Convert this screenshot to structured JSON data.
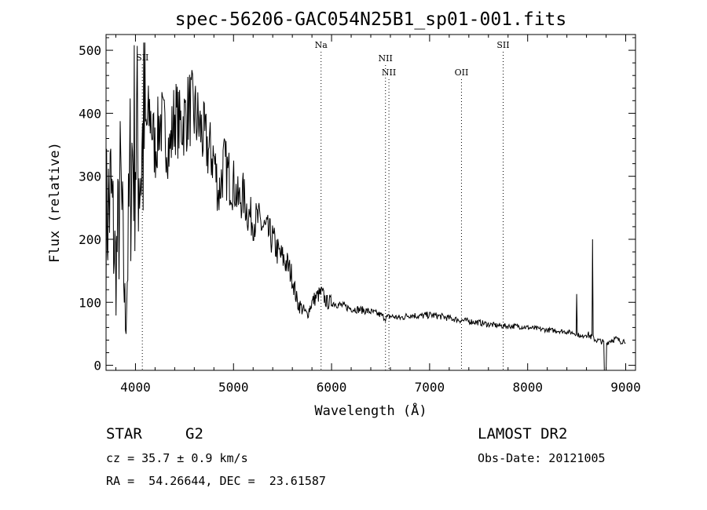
{
  "chart_data": {
    "type": "line",
    "title": "spec-56206-GAC054N25B1_sp01-001.fits",
    "xlabel": "Wavelength (Å)",
    "ylabel": "Flux (relative)",
    "xlim": [
      3700,
      9100
    ],
    "ylim": [
      -8,
      525
    ],
    "x_ticks": [
      4000,
      5000,
      6000,
      7000,
      8000,
      9000
    ],
    "y_ticks": [
      0,
      100,
      200,
      300,
      400,
      500
    ],
    "grid": false,
    "series": [
      {
        "x": [
          3700,
          3750,
          3800,
          3850,
          3900,
          3950,
          4000,
          4050,
          4100,
          4150,
          4200,
          4250,
          4300,
          4350,
          4400,
          4450,
          4500,
          4550,
          4600,
          4650,
          4700,
          4750,
          4800,
          4850,
          4900,
          4950,
          5000,
          5050,
          5100,
          5150,
          5200,
          5250,
          5300,
          5350,
          5400,
          5450,
          5500,
          5550,
          5600,
          5650,
          5700,
          5750,
          5800,
          5850,
          5900,
          5950,
          6000,
          6100,
          6200,
          6300,
          6400,
          6500,
          6550,
          6600,
          6700,
          6800,
          6900,
          7000,
          7100,
          7200,
          7300,
          7400,
          7500,
          7600,
          7700,
          7800,
          7900,
          8000,
          8100,
          8200,
          8300,
          8400,
          8450,
          8500,
          8550,
          8600,
          8650,
          8700,
          8750,
          8800,
          8850,
          8900,
          8950,
          9000
        ],
        "y": [
          230,
          270,
          150,
          280,
          60,
          320,
          360,
          320,
          370,
          400,
          340,
          390,
          370,
          340,
          400,
          380,
          390,
          410,
          400,
          380,
          360,
          340,
          330,
          270,
          320,
          300,
          290,
          260,
          270,
          240,
          230,
          230,
          220,
          210,
          200,
          180,
          170,
          160,
          140,
          100,
          90,
          80,
          100,
          110,
          115,
          100,
          100,
          95,
          90,
          88,
          85,
          80,
          75,
          78,
          75,
          80,
          78,
          80,
          78,
          75,
          72,
          70,
          68,
          65,
          63,
          62,
          62,
          60,
          58,
          56,
          55,
          53,
          52,
          50,
          45,
          50,
          45,
          40,
          38,
          35,
          40,
          42,
          38,
          40
        ]
      }
    ],
    "spikes": [
      {
        "x": 8498,
        "y": 113
      },
      {
        "x": 8542,
        "y": 45
      },
      {
        "x": 8662,
        "y": 200
      }
    ],
    "line_markers": [
      {
        "label": "SII",
        "x": 4070
      },
      {
        "label": "Na",
        "x": 5893
      },
      {
        "label": "NII",
        "x": 6550
      },
      {
        "label": "NII",
        "x": 6585
      },
      {
        "label": "OII",
        "x": 7325
      },
      {
        "label": "SII",
        "x": 7750
      }
    ]
  },
  "info": {
    "object_class": "STAR",
    "subclass": "G2",
    "survey": "LAMOST DR2",
    "cz": "cz = 35.7 ± 0.9 km/s",
    "obs_date": "Obs-Date: 20121005",
    "radec": "RA =  54.26644, DEC =  23.61587"
  }
}
